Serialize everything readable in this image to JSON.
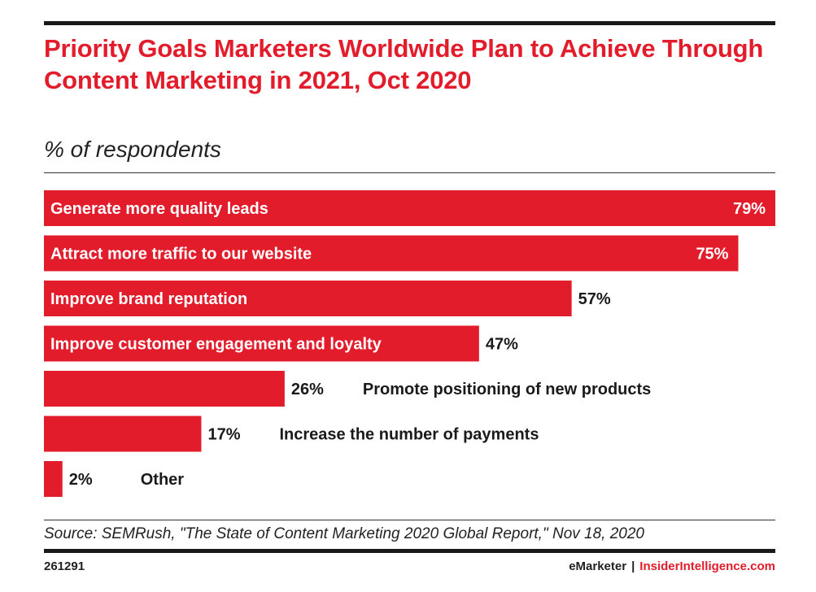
{
  "header": {
    "title": "Priority Goals Marketers Worldwide Plan to Achieve Through Content Marketing in 2021, Oct 2020",
    "subtitle": "% of respondents"
  },
  "chart_data": {
    "type": "bar",
    "orientation": "horizontal",
    "title": "Priority Goals Marketers Worldwide Plan to Achieve Through Content Marketing in 2021, Oct 2020",
    "subtitle": "% of respondents",
    "categories": [
      "Generate more quality leads",
      "Attract more traffic to our website",
      "Improve brand reputation",
      "Improve customer engagement and loyalty",
      "Promote positioning of new products",
      "Increase the number of payments",
      "Other"
    ],
    "values": [
      79,
      75,
      57,
      47,
      26,
      17,
      2
    ],
    "value_labels": [
      "79%",
      "75%",
      "57%",
      "47%",
      "26%",
      "17%",
      "2%"
    ],
    "unit": "%",
    "bar_color": "#e21c2b",
    "xlim": [
      0,
      79
    ]
  },
  "footer": {
    "source": "Source: SEMRush, \"The State of Content Marketing 2020 Global Report,\" Nov 18, 2020",
    "chart_id": "261291",
    "brand_emarketer": "eMarketer",
    "brand_separator": "|",
    "brand_insider": "InsiderIntelligence.com"
  },
  "colors": {
    "accent": "#e21c2b",
    "text": "#1a1a1a"
  }
}
